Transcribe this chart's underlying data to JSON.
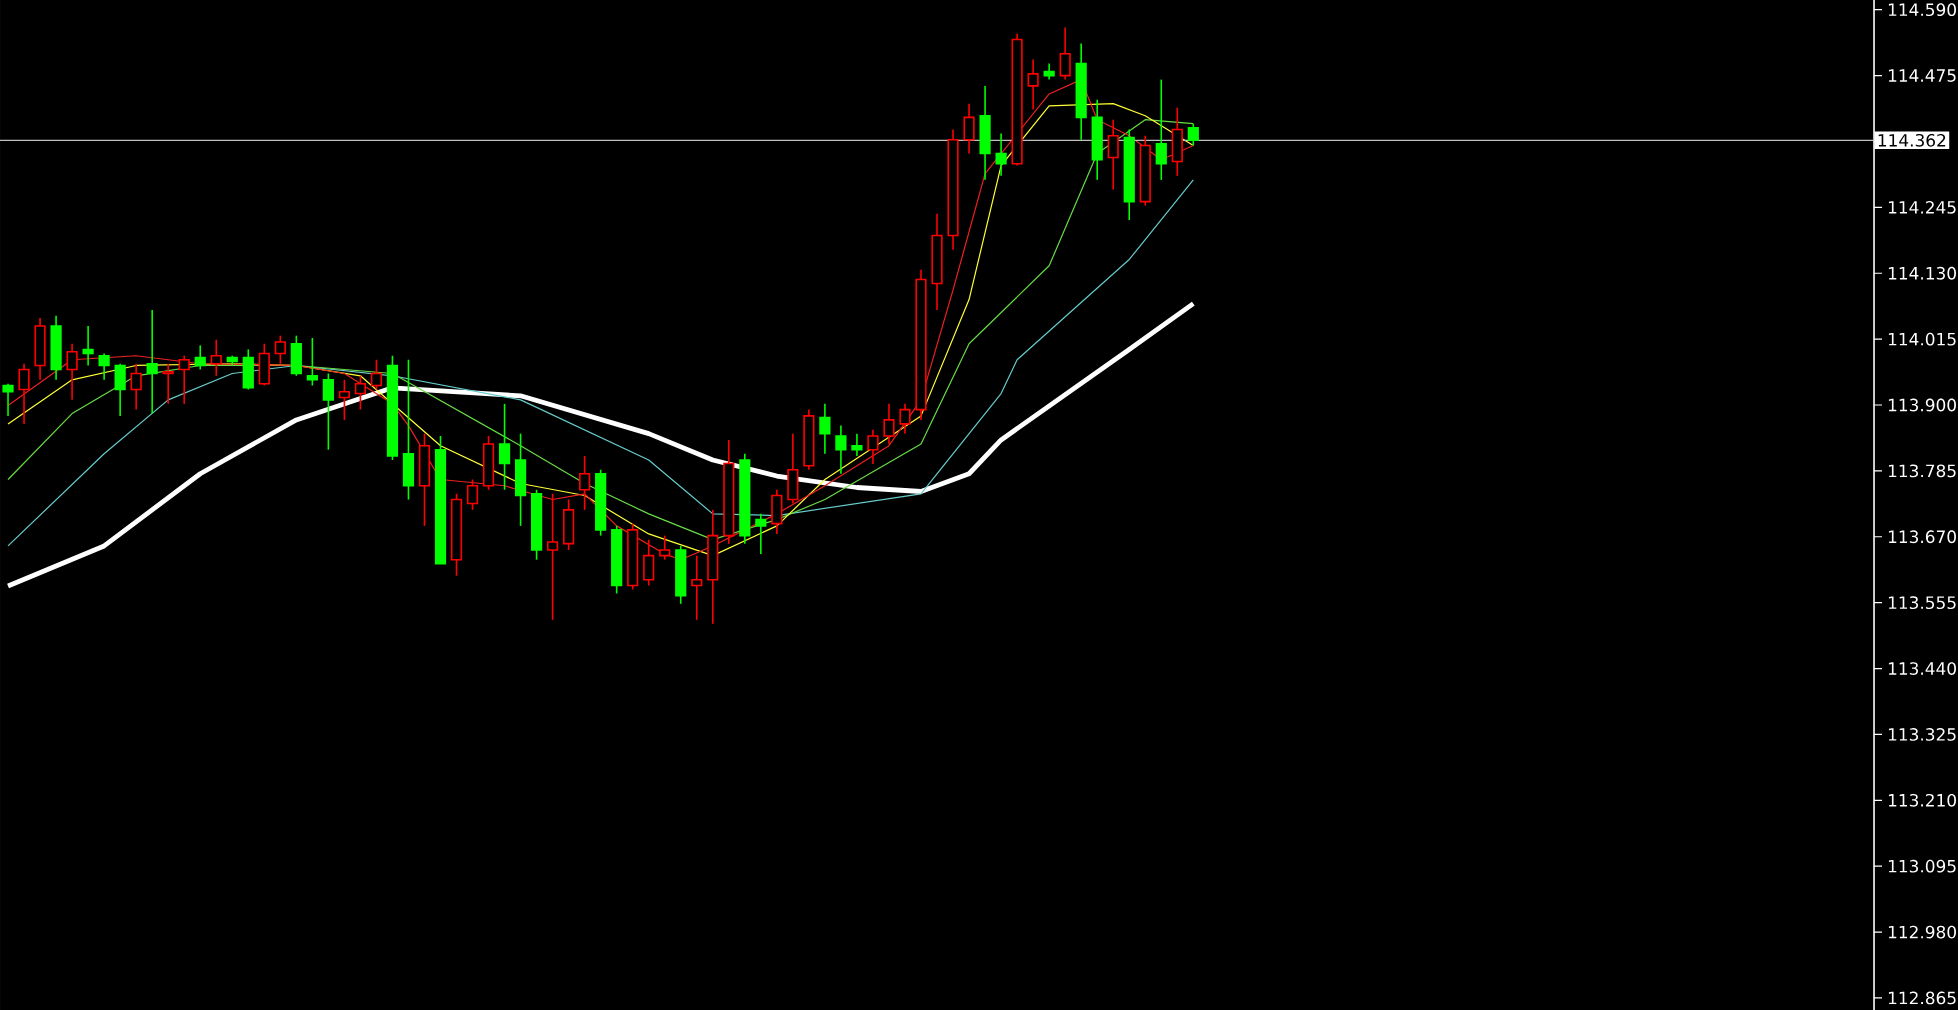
{
  "chart_data": {
    "type": "candlestick",
    "categories": [
      null,
      null,
      null,
      null,
      null,
      null,
      null,
      null,
      null,
      null,
      null,
      null,
      null,
      null,
      null,
      null,
      null,
      null,
      null,
      null,
      null,
      null,
      null,
      null,
      null,
      null,
      null,
      null,
      null,
      null,
      null,
      null,
      null,
      null,
      null,
      null,
      null,
      null,
      null,
      null,
      null,
      null,
      null,
      null,
      null,
      null,
      null,
      null,
      null,
      null,
      null,
      null,
      null,
      null,
      null,
      null,
      null,
      null,
      null,
      null,
      null,
      null,
      null,
      null,
      null,
      null,
      null,
      null,
      null,
      null,
      null,
      null,
      null,
      null,
      null,
      null,
      null,
      null,
      null,
      null,
      null,
      null,
      null,
      null,
      null,
      null,
      null,
      null,
      null,
      null,
      null,
      null,
      null,
      null,
      null,
      null,
      null,
      null,
      null,
      null,
      null,
      null,
      null,
      null,
      null,
      null,
      null,
      null,
      null,
      null,
      null,
      null,
      null,
      null,
      null,
      null,
      null
    ],
    "ohlc": [
      [
        113.934,
        113.937,
        113.881,
        113.923
      ],
      [
        113.927,
        113.972,
        113.867,
        113.962
      ],
      [
        113.969,
        114.052,
        113.944,
        114.038
      ],
      [
        114.038,
        114.056,
        113.944,
        113.962
      ],
      [
        113.962,
        114.007,
        113.909,
        113.993
      ],
      [
        113.997,
        114.038,
        113.969,
        113.99
      ],
      [
        113.986,
        113.99,
        113.944,
        113.969
      ],
      [
        113.969,
        113.972,
        113.881,
        113.927
      ],
      [
        113.927,
        113.972,
        113.892,
        113.955
      ],
      [
        113.972,
        114.066,
        113.885,
        113.955
      ],
      [
        113.955,
        113.972,
        113.902,
        113.958
      ],
      [
        113.962,
        113.986,
        113.902,
        113.979
      ],
      [
        113.983,
        114.004,
        113.962,
        113.969
      ],
      [
        113.972,
        114.014,
        113.951,
        113.986
      ],
      [
        113.983,
        113.986,
        113.969,
        113.976
      ],
      [
        113.983,
        113.997,
        113.927,
        113.93
      ],
      [
        113.937,
        114.007,
        113.934,
        113.99
      ],
      [
        113.99,
        114.021,
        113.972,
        114.01
      ],
      [
        114.007,
        114.021,
        113.951,
        113.955
      ],
      [
        113.951,
        114.017,
        113.934,
        113.944
      ],
      [
        113.944,
        113.955,
        113.822,
        113.909
      ],
      [
        113.913,
        113.944,
        113.874,
        113.923
      ],
      [
        113.92,
        113.951,
        113.892,
        113.937
      ],
      [
        113.934,
        113.979,
        113.927,
        113.955
      ],
      [
        113.969,
        113.986,
        113.804,
        113.811
      ],
      [
        113.815,
        113.979,
        113.735,
        113.759
      ],
      [
        113.759,
        113.85,
        113.689,
        113.829
      ],
      [
        113.822,
        113.846,
        113.623,
        113.623
      ],
      [
        113.63,
        113.745,
        113.602,
        113.735
      ],
      [
        113.728,
        113.77,
        113.717,
        113.759
      ],
      [
        113.759,
        113.846,
        113.752,
        113.832
      ],
      [
        113.832,
        113.902,
        113.752,
        113.798
      ],
      [
        113.804,
        113.85,
        113.689,
        113.742
      ],
      [
        113.745,
        113.752,
        113.63,
        113.647
      ],
      [
        113.647,
        113.745,
        113.525,
        113.661
      ],
      [
        113.658,
        113.735,
        113.647,
        113.717
      ],
      [
        113.752,
        113.811,
        113.717,
        113.78
      ],
      [
        113.78,
        113.787,
        113.672,
        113.682
      ],
      [
        113.682,
        113.689,
        113.571,
        113.585
      ],
      [
        113.585,
        113.693,
        113.578,
        113.682
      ],
      [
        113.595,
        113.665,
        113.585,
        113.637
      ],
      [
        113.637,
        113.672,
        113.63,
        113.647
      ],
      [
        113.647,
        113.654,
        113.553,
        113.567
      ],
      [
        113.585,
        113.637,
        113.525,
        113.595
      ],
      [
        113.595,
        113.717,
        113.518,
        113.672
      ],
      [
        113.672,
        113.839,
        113.658,
        113.798
      ],
      [
        113.804,
        113.815,
        113.658,
        113.672
      ],
      [
        113.7,
        113.71,
        113.64,
        113.689
      ],
      [
        113.693,
        113.752,
        113.675,
        113.742
      ],
      [
        113.735,
        113.85,
        113.728,
        113.787
      ],
      [
        113.794,
        113.892,
        113.787,
        113.881
      ],
      [
        113.878,
        113.902,
        113.815,
        113.85
      ],
      [
        113.846,
        113.864,
        113.78,
        113.822
      ],
      [
        113.829,
        113.85,
        113.811,
        113.822
      ],
      [
        113.822,
        113.857,
        113.797,
        113.846
      ],
      [
        113.846,
        113.902,
        113.832,
        113.874
      ],
      [
        113.867,
        113.902,
        113.85,
        113.892
      ],
      [
        113.892,
        114.136,
        113.874,
        114.119
      ],
      [
        114.112,
        114.234,
        114.066,
        114.196
      ],
      [
        114.196,
        114.381,
        114.171,
        114.363
      ],
      [
        114.363,
        114.426,
        114.339,
        114.402
      ],
      [
        114.405,
        114.457,
        114.293,
        114.339
      ],
      [
        114.339,
        114.374,
        114.3,
        114.321
      ],
      [
        114.321,
        114.548,
        114.318,
        114.538
      ],
      [
        114.457,
        114.503,
        114.416,
        114.478
      ],
      [
        114.482,
        114.496,
        114.468,
        114.475
      ],
      [
        114.475,
        114.559,
        114.468,
        114.513
      ],
      [
        114.496,
        114.531,
        114.363,
        114.402
      ],
      [
        114.402,
        114.433,
        114.293,
        114.328
      ],
      [
        114.332,
        114.398,
        114.276,
        114.37
      ],
      [
        114.367,
        114.381,
        114.223,
        114.255
      ],
      [
        114.255,
        114.37,
        114.248,
        114.353
      ],
      [
        114.356,
        114.468,
        114.293,
        114.321
      ],
      [
        114.325,
        114.419,
        114.3,
        114.381
      ],
      [
        114.384,
        114.391,
        114.353,
        114.362
      ],
      null,
      null,
      null,
      null,
      null,
      null,
      null,
      null,
      null,
      null,
      null,
      null,
      null,
      null,
      null,
      null,
      null,
      null,
      null,
      null,
      null,
      null,
      null,
      null,
      null,
      null,
      null,
      null,
      null,
      null,
      null,
      null,
      null,
      null,
      null,
      null,
      null,
      null,
      null,
      null,
      null,
      null
    ],
    "colors": [
      "#00ff00",
      "#ff0000",
      "#ff0000",
      "#00ff00",
      "#ff0000",
      "#00ff00",
      "#00ff00",
      "#00ff00",
      "#ff0000",
      "#00ff00",
      "#ff0000",
      "#ff0000",
      "#00ff00",
      "#ff0000",
      "#00ff00",
      "#00ff00",
      "#ff0000",
      "#ff0000",
      "#00ff00",
      "#00ff00",
      "#00ff00",
      "#ff0000",
      "#ff0000",
      "#ff0000",
      "#00ff00",
      "#00ff00",
      "#ff0000",
      "#00ff00",
      "#ff0000",
      "#ff0000",
      "#ff0000",
      "#00ff00",
      "#00ff00",
      "#00ff00",
      "#ff0000",
      "#ff0000",
      "#ff0000",
      "#00ff00",
      "#00ff00",
      "#ff0000",
      "#ff0000",
      "#ff0000",
      "#00ff00",
      "#ff0000",
      "#ff0000",
      "#ff0000",
      "#00ff00",
      "#00ff00",
      "#ff0000",
      "#ff0000",
      "#ff0000",
      "#00ff00",
      "#00ff00",
      "#00ff00",
      "#ff0000",
      "#ff0000",
      "#ff0000",
      "#ff0000",
      "#ff0000",
      "#ff0000",
      "#ff0000",
      "#00ff00",
      "#00ff00",
      "#ff0000",
      "#ff0000",
      "#00ff00",
      "#ff0000",
      "#00ff00",
      "#00ff00",
      "#ff0000",
      "#00ff00",
      "#ff0000",
      "#00ff00",
      "#ff0000",
      "#00ff00",
      null,
      null,
      null,
      null,
      null,
      null,
      null,
      null,
      null,
      null,
      null,
      null,
      null,
      null,
      null,
      null,
      null,
      null,
      null,
      null,
      null,
      null,
      null,
      null,
      null,
      null,
      null,
      null,
      null,
      null,
      null,
      null,
      null,
      null,
      null,
      null,
      null,
      null,
      null,
      null,
      null,
      null
    ],
    "series": [
      {
        "type": "line",
        "color": "#ffffff",
        "values": [
          113.584,
          null,
          null,
          null,
          null,
          null,
          113.654,
          null,
          null,
          null,
          null,
          null,
          113.78,
          null,
          null,
          null,
          null,
          null,
          113.874,
          null,
          null,
          null,
          null,
          null,
          113.93,
          null,
          null,
          null,
          null,
          null,
          null,
          null,
          113.916,
          null,
          null,
          null,
          null,
          null,
          null,
          null,
          113.85,
          null,
          null,
          null,
          113.804,
          null,
          null,
          null,
          113.776,
          null,
          null,
          null,
          null,
          113.756,
          null,
          null,
          null,
          113.749,
          null,
          null,
          113.78,
          null,
          113.839,
          null,
          null,
          null,
          null,
          null,
          null,
          null,
          113.997,
          null,
          null,
          null,
          114.077,
          null,
          null,
          null,
          null,
          null,
          null,
          null,
          null,
          null,
          null,
          null,
          null,
          null,
          null,
          null,
          null,
          null,
          null,
          null,
          null,
          null,
          null,
          null,
          null,
          null,
          null,
          null,
          null,
          null,
          null,
          null,
          null,
          null,
          null,
          null,
          null,
          null,
          null,
          null,
          null,
          null,
          null
        ]
      },
      {
        "type": "line",
        "color": "#66cccc",
        "values": [
          113.654,
          null,
          null,
          null,
          null,
          null,
          113.815,
          null,
          null,
          null,
          113.909,
          null,
          null,
          null,
          113.955,
          null,
          null,
          null,
          113.969,
          null,
          null,
          null,
          null,
          null,
          113.951,
          null,
          null,
          null,
          null,
          null,
          null,
          null,
          113.909,
          null,
          null,
          null,
          null,
          null,
          null,
          null,
          113.804,
          null,
          null,
          null,
          113.71,
          null,
          null,
          null,
          113.707,
          null,
          null,
          null,
          null,
          null,
          null,
          null,
          null,
          113.745,
          null,
          null,
          null,
          null,
          113.92,
          113.979,
          null,
          null,
          null,
          null,
          null,
          null,
          114.154,
          null,
          null,
          null,
          114.293,
          null,
          null,
          null,
          null,
          null,
          null,
          null,
          null,
          null,
          null,
          null,
          null,
          null,
          null,
          null,
          null,
          null,
          null,
          null,
          null,
          null,
          null,
          null,
          null,
          null,
          null,
          null,
          null,
          null,
          null,
          null,
          null,
          null,
          null,
          null,
          null,
          null,
          null,
          null,
          null,
          null,
          null
        ]
      },
      {
        "type": "line",
        "color": "#66dd44",
        "values": [
          113.77,
          null,
          null,
          null,
          113.885,
          null,
          null,
          null,
          113.951,
          null,
          null,
          null,
          113.969,
          null,
          null,
          null,
          null,
          null,
          113.969,
          null,
          null,
          null,
          null,
          null,
          113.955,
          null,
          null,
          null,
          null,
          null,
          null,
          null,
          113.829,
          null,
          null,
          null,
          113.763,
          null,
          null,
          null,
          113.71,
          null,
          null,
          null,
          113.665,
          null,
          null,
          null,
          113.7,
          null,
          null,
          113.735,
          null,
          null,
          null,
          null,
          null,
          113.832,
          null,
          null,
          114.007,
          null,
          null,
          null,
          null,
          114.143,
          null,
          null,
          114.339,
          null,
          null,
          114.398,
          null,
          null,
          114.391,
          null,
          null,
          null,
          null,
          null,
          null,
          null,
          null,
          null,
          null,
          null,
          null,
          null,
          null,
          null,
          null,
          null,
          null,
          null,
          null,
          null,
          null,
          null,
          null,
          null,
          null,
          null,
          null,
          null,
          null,
          null,
          null,
          null,
          null,
          null,
          null,
          null,
          null,
          null,
          null,
          null,
          null
        ]
      },
      {
        "type": "line",
        "color": "#ffff33",
        "values": [
          113.867,
          null,
          null,
          null,
          113.944,
          null,
          null,
          null,
          113.969,
          null,
          null,
          null,
          null,
          null,
          113.972,
          null,
          null,
          null,
          113.969,
          null,
          null,
          null,
          113.951,
          null,
          null,
          null,
          null,
          113.829,
          null,
          null,
          null,
          null,
          113.763,
          null,
          null,
          null,
          113.742,
          null,
          null,
          null,
          113.675,
          null,
          null,
          null,
          113.637,
          null,
          null,
          null,
          113.689,
          null,
          null,
          113.77,
          null,
          null,
          null,
          null,
          null,
          113.881,
          null,
          null,
          114.084,
          null,
          114.318,
          null,
          null,
          114.422,
          null,
          null,
          null,
          114.426,
          null,
          114.405,
          null,
          null,
          114.353,
          null,
          null,
          null,
          null,
          null,
          null,
          null,
          null,
          null,
          null,
          null,
          null,
          null,
          null,
          null,
          null,
          null,
          null,
          null,
          null,
          null,
          null,
          null,
          null,
          null,
          null,
          null,
          null,
          null,
          null,
          null,
          null,
          null,
          null,
          null,
          null,
          null,
          null,
          null,
          null,
          null,
          null
        ]
      },
      {
        "type": "line",
        "color": "#ee2020",
        "values": [
          113.899,
          null,
          null,
          null,
          113.979,
          null,
          null,
          null,
          113.986,
          null,
          null,
          null,
          113.972,
          null,
          null,
          null,
          null,
          null,
          113.969,
          null,
          null,
          113.955,
          null,
          null,
          113.902,
          113.864,
          null,
          113.77,
          null,
          null,
          null,
          113.759,
          null,
          null,
          113.735,
          null,
          113.745,
          null,
          113.689,
          null,
          null,
          113.64,
          113.63,
          null,
          113.654,
          null,
          null,
          null,
          113.71,
          null,
          null,
          113.759,
          null,
          null,
          null,
          113.829,
          null,
          113.909,
          null,
          114.101,
          null,
          114.304,
          null,
          null,
          null,
          114.443,
          null,
          114.468,
          114.398,
          null,
          114.37,
          null,
          114.328,
          null,
          114.353,
          null,
          null,
          null,
          null,
          null,
          null,
          null,
          null,
          null,
          null,
          null,
          null,
          null,
          null,
          null,
          null,
          null,
          null,
          null,
          null,
          null,
          null,
          null,
          null,
          null,
          null,
          null,
          null,
          null,
          null,
          null,
          null,
          null,
          null,
          null,
          null,
          null,
          null,
          null,
          null,
          null,
          null
        ]
      }
    ],
    "ylim": [
      112.844,
      114.607
    ],
    "yticks": [
      {
        "value": 112.865,
        "label": "112.865"
      },
      {
        "value": 112.98,
        "label": "112.980"
      },
      {
        "value": 113.095,
        "label": "113.095"
      },
      {
        "value": 113.21,
        "label": "113.210"
      },
      {
        "value": 113.325,
        "label": "113.325"
      },
      {
        "value": 113.44,
        "label": "113.440"
      },
      {
        "value": 113.555,
        "label": "113.555"
      },
      {
        "value": 113.67,
        "label": "113.670"
      },
      {
        "value": 113.785,
        "label": "113.785"
      },
      {
        "value": 113.9,
        "label": "113.900"
      },
      {
        "value": 114.015,
        "label": "114.015"
      },
      {
        "value": 114.13,
        "label": "114.130"
      },
      {
        "value": 114.245,
        "label": "114.245"
      },
      {
        "value": 114.36,
        "label": null
      },
      {
        "value": 114.475,
        "label": "114.475"
      },
      {
        "value": 114.59,
        "label": "114.590"
      }
    ],
    "ref_lines": [
      {
        "axis": "y",
        "value": 114.362,
        "label": "114.362",
        "color": "#c0c0c0"
      }
    ]
  }
}
